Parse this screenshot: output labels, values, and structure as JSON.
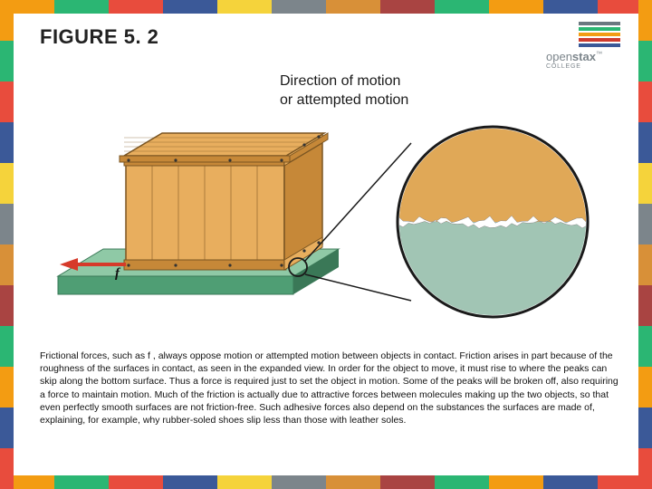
{
  "title": "FIGURE 5. 2",
  "motion_label_line1": "Direction of motion",
  "motion_label_line2": "or attempted motion",
  "caption": "Frictional forces, such as f , always oppose motion or attempted motion between objects in contact. Friction arises in part because of the roughness of the surfaces in contact, as seen in the expanded view. In order for the object to move, it must rise to where the peaks can skip along the bottom surface. Thus a force is required just to set the object in motion. Some of the peaks will be broken off, also requiring a force to maintain motion. Much of the friction is actually due to attractive forces between molecules making up the two objects, so that even perfectly smooth surfaces are not friction-free. Such adhesive forces also depend on the substances the surfaces are made of, explaining, for example, why rubber-soled shoes slip less than those with leather soles.",
  "logo_text1": "open",
  "logo_text2": "stax",
  "logo_sub": "COLLEGE",
  "force_label": "f",
  "border_colors": [
    "#f39c12",
    "#2bb673",
    "#e84c3d",
    "#3b5998",
    "#f5d33b",
    "#7c858b",
    "#d89038",
    "#a94442",
    "#2bb673",
    "#f39c12",
    "#3b5998",
    "#e84c3d"
  ],
  "logo_bar_colors": [
    "#6b7880",
    "#2bb673",
    "#f39c12",
    "#cf3b2e",
    "#3b5998"
  ],
  "crate": {
    "fill_light": "#e8ae5e",
    "fill_dark": "#c68838",
    "edge": "#7a5522",
    "rivet": "#333"
  },
  "floor": {
    "top": "#8fc9a6",
    "side": "#4f9e74",
    "dark": "#3a7857"
  },
  "arrow_color": "#d63a2a",
  "magnify": {
    "ring": "#1a1a1a",
    "crate_surface": "#e0a857",
    "floor_surface": "#a1c5b4",
    "gap": "#ffffff"
  }
}
